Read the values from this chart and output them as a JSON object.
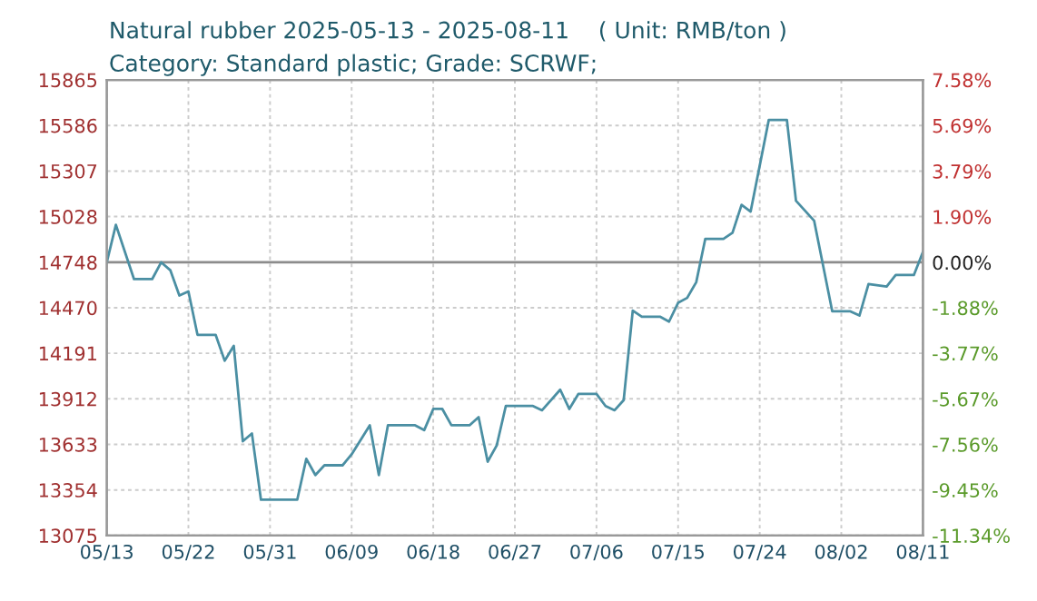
{
  "chart_data": {
    "type": "line",
    "title": "Natural rubber 2025-05-13 - 2025-08-11    ( Unit: RMB/ton )",
    "subtitle": "Category: Standard plastic; Grade: SCRWF;",
    "x": [
      "2025-05-13",
      "2025-05-14",
      "2025-05-16",
      "2025-05-18",
      "2025-05-19",
      "2025-05-20",
      "2025-05-21",
      "2025-05-22",
      "2025-05-23",
      "2025-05-25",
      "2025-05-26",
      "2025-05-27",
      "2025-05-28",
      "2025-05-29",
      "2025-05-30",
      "2025-06-03",
      "2025-06-04",
      "2025-06-05",
      "2025-06-06",
      "2025-06-08",
      "2025-06-09",
      "2025-06-11",
      "2025-06-12",
      "2025-06-13",
      "2025-06-16",
      "2025-06-17",
      "2025-06-18",
      "2025-06-19",
      "2025-06-20",
      "2025-06-22",
      "2025-06-23",
      "2025-06-24",
      "2025-06-25",
      "2025-06-26",
      "2025-06-29",
      "2025-06-30",
      "2025-07-02",
      "2025-07-03",
      "2025-07-04",
      "2025-07-06",
      "2025-07-07",
      "2025-07-08",
      "2025-07-09",
      "2025-07-10",
      "2025-07-11",
      "2025-07-13",
      "2025-07-14",
      "2025-07-15",
      "2025-07-16",
      "2025-07-17",
      "2025-07-18",
      "2025-07-20",
      "2025-07-21",
      "2025-07-22",
      "2025-07-23",
      "2025-07-25",
      "2025-07-27",
      "2025-07-28",
      "2025-07-30",
      "2025-08-01",
      "2025-08-03",
      "2025-08-04",
      "2025-08-05",
      "2025-08-07",
      "2025-08-08",
      "2025-08-10",
      "2025-08-11"
    ],
    "series": [
      {
        "color": "#4b8fa3",
        "values": [
          14748,
          14978,
          14645,
          14645,
          14748,
          14700,
          14545,
          14570,
          14304,
          14304,
          14145,
          14237,
          13652,
          13700,
          13294,
          13294,
          13545,
          13445,
          13505,
          13505,
          13572,
          13750,
          13445,
          13750,
          13750,
          13720,
          13850,
          13850,
          13750,
          13750,
          13800,
          13527,
          13627,
          13868,
          13868,
          13842,
          13968,
          13850,
          13942,
          13942,
          13868,
          13842,
          13904,
          14452,
          14415,
          14415,
          14385,
          14500,
          14530,
          14626,
          14892,
          14892,
          14929,
          15100,
          15059,
          15620,
          15620,
          15125,
          15003,
          14448,
          14448,
          14422,
          14615,
          14600,
          14670,
          14670,
          14811
        ]
      }
    ],
    "xlim": [
      "2025-05-13",
      "2025-08-11"
    ],
    "xticks": [
      {
        "value": "2025-05-13",
        "label": "05/13"
      },
      {
        "value": "2025-05-22",
        "label": "05/22"
      },
      {
        "value": "2025-05-31",
        "label": "05/31"
      },
      {
        "value": "2025-06-09",
        "label": "06/09"
      },
      {
        "value": "2025-06-18",
        "label": "06/18"
      },
      {
        "value": "2025-06-27",
        "label": "06/27"
      },
      {
        "value": "2025-07-06",
        "label": "07/06"
      },
      {
        "value": "2025-07-15",
        "label": "07/15"
      },
      {
        "value": "2025-07-24",
        "label": "07/24"
      },
      {
        "value": "2025-08-02",
        "label": "08/02"
      },
      {
        "value": "2025-08-11",
        "label": "08/11"
      }
    ],
    "ylim": [
      13075,
      15865
    ],
    "yticks": [
      13075,
      13354,
      13633,
      13912,
      14191,
      14470,
      14748,
      15028,
      15307,
      15586,
      15865
    ],
    "y2lim": [
      -11.34,
      7.58
    ],
    "y2ticks": [
      {
        "value": -11.34,
        "label": "-11.34%"
      },
      {
        "value": -9.45,
        "label": "-9.45%"
      },
      {
        "value": -7.56,
        "label": "-7.56%"
      },
      {
        "value": -5.67,
        "label": "-5.67%"
      },
      {
        "value": -3.77,
        "label": "-3.77%"
      },
      {
        "value": -1.88,
        "label": "-1.88%"
      },
      {
        "value": 0,
        "label": "0.00%"
      },
      {
        "value": 1.9,
        "label": "1.90%"
      },
      {
        "value": 3.79,
        "label": "3.79%"
      },
      {
        "value": 5.69,
        "label": "5.69%"
      },
      {
        "value": 7.58,
        "label": "7.58%"
      }
    ],
    "ref_lines": [
      {
        "axis": "y",
        "value": 14748,
        "color": "#8c8c8c",
        "line_style": "solid"
      }
    ],
    "grid": true,
    "legend": false,
    "marker": "none",
    "line_style": "solid"
  }
}
